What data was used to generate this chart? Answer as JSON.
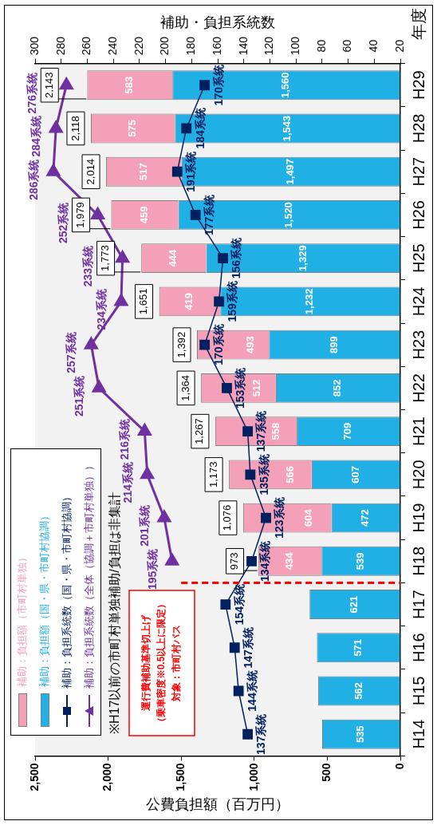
{
  "chart_data": {
    "type": "bar",
    "orientation": "horizontal",
    "stacked": true,
    "categories": [
      "H29",
      "H28",
      "H27",
      "H26",
      "H25",
      "H24",
      "H23",
      "H22",
      "H21",
      "H20",
      "H19",
      "H18",
      "H17",
      "H16",
      "H15",
      "H14"
    ],
    "xlabel": "公費負担額（百万円）",
    "x2label": "補助・負担系統数",
    "ylabel": "年度",
    "xlim": [
      2500,
      0
    ],
    "xticks": [
      {
        "value": 2500,
        "label": "2,500"
      },
      {
        "value": 2000,
        "label": "2,000"
      },
      {
        "value": 1500,
        "label": "1,500"
      },
      {
        "value": 1000,
        "label": "1,000"
      },
      500,
      0
    ],
    "x2lim": [
      300,
      20
    ],
    "x2ticks": [
      300,
      280,
      260,
      240,
      220,
      200,
      180,
      160,
      140,
      120,
      100,
      80,
      60,
      40,
      20
    ],
    "series": [
      {
        "name": "補助：負担額（国・県・市町村協調）",
        "color": "#21b0e6",
        "values": [
          1560,
          1543,
          1497,
          1520,
          1329,
          1232,
          899,
          852,
          709,
          607,
          472,
          539,
          621,
          571,
          562,
          535
        ],
        "value_labels": [
          "1,560",
          "1,543",
          "1,497",
          "1,520",
          "1,329",
          "1,232",
          "899",
          "852",
          "709",
          "607",
          "472",
          "539",
          "621",
          "571",
          "562",
          "535"
        ]
      },
      {
        "name": "補助：負担額（市町村単独）",
        "color": "#f4a0b8",
        "values": [
          583,
          575,
          517,
          459,
          444,
          419,
          493,
          512,
          558,
          566,
          604,
          434,
          null,
          null,
          null,
          null
        ],
        "value_labels": [
          "583",
          "575",
          "517",
          "459",
          "444",
          "419",
          "493",
          "512",
          "558",
          "566",
          "604",
          "434",
          null,
          null,
          null,
          null
        ]
      },
      {
        "type": "line",
        "axis": "x2",
        "name": "補助：負担系統数（国・県・市町村協調）",
        "color": "#002060",
        "marker": "square",
        "values": [
          170,
          184,
          191,
          177,
          156,
          159,
          170,
          153,
          137,
          135,
          123,
          134,
          154,
          147,
          144,
          137
        ],
        "value_labels": [
          "170系統",
          "184系統",
          "191系統",
          "177系統",
          "156系統",
          "159系統",
          "170系統",
          "153系統",
          "137系統",
          "135系統",
          "123系統",
          "134系統",
          "154系統",
          "147系統",
          "144系統",
          "137系統"
        ]
      },
      {
        "type": "line",
        "axis": "x2",
        "name": "補助：負担系統数（全体（協調＋市町村単独））",
        "color": "#7030a0",
        "marker": "triangle",
        "values": [
          276,
          284,
          286,
          252,
          233,
          234,
          257,
          251,
          216,
          214,
          201,
          195,
          null,
          null,
          null,
          null
        ],
        "value_labels": [
          "276系統",
          "284系統",
          "286系統",
          "252系統",
          "233系統",
          "234系統",
          "257系統",
          "251系統",
          "216系統",
          "214系統",
          "201系統",
          "195系統",
          null,
          null,
          null,
          null
        ]
      }
    ],
    "totals": [
      "2,143",
      "2,118",
      "2,014",
      "1,979",
      "1,773",
      "1,651",
      "1,392",
      "1,364",
      "1,267",
      "1,173",
      "1,076",
      "973",
      null,
      null,
      null,
      null
    ],
    "ref_lines": [
      {
        "axis": "y",
        "value": "H17",
        "color": "#ff0000",
        "line_style": "dashed"
      }
    ],
    "legend": "bottom left",
    "grid": false,
    "annotations": [
      "※H17以前の市町村単独補助/負担は非集計",
      "運行費補助基準切上げ",
      "（乗車密度※0.5以上に限定）",
      "対象：市町村バス"
    ]
  }
}
